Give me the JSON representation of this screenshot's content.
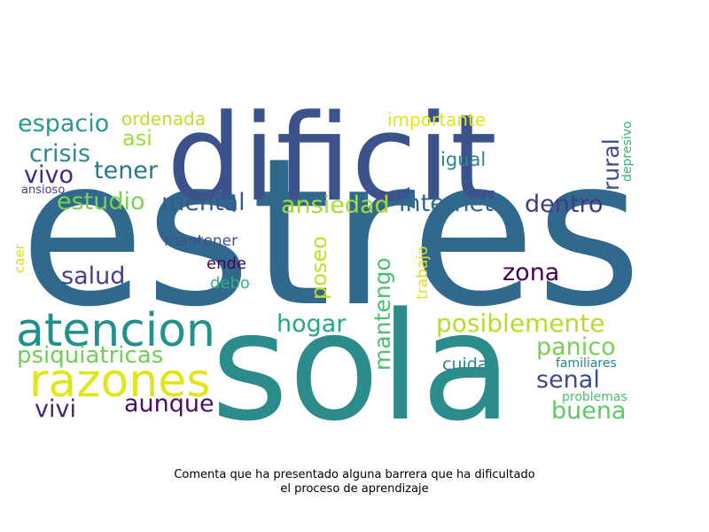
{
  "caption": {
    "line1": "Comenta que ha presentado alguna barrera que ha dificultado",
    "line2": "el proceso de aprendizaje"
  },
  "words": [
    {
      "text": "estres",
      "color": "#31688e",
      "rotated": false
    },
    {
      "text": "dificit",
      "color": "#3b528b",
      "rotated": false
    },
    {
      "text": "sola",
      "color": "#2c8b8b",
      "rotated": false
    },
    {
      "text": "atencion",
      "color": "#21918c",
      "rotated": false
    },
    {
      "text": "razones",
      "color": "#e1e61a",
      "rotated": false
    },
    {
      "text": "posiblemente",
      "color": "#b5de2b",
      "rotated": false
    },
    {
      "text": "psiquiatricas",
      "color": "#6ece58",
      "rotated": false
    },
    {
      "text": "espacio",
      "color": "#2a988a",
      "rotated": false
    },
    {
      "text": "crisis",
      "color": "#2e8a8c",
      "rotated": false
    },
    {
      "text": "vivo",
      "color": "#482878",
      "rotated": false
    },
    {
      "text": "tener",
      "color": "#2a788e",
      "rotated": false
    },
    {
      "text": "asi",
      "color": "#9fda3a",
      "rotated": false
    },
    {
      "text": "ordenada",
      "color": "#bddf26",
      "rotated": false
    },
    {
      "text": "importante",
      "color": "#e5e419",
      "rotated": false
    },
    {
      "text": "igual",
      "color": "#2c838e",
      "rotated": false
    },
    {
      "text": "rural",
      "color": "#3e4989",
      "rotated": true
    },
    {
      "text": "depresivo",
      "color": "#35b779",
      "rotated": true
    },
    {
      "text": "ansioso",
      "color": "#433e85",
      "rotated": false
    },
    {
      "text": "estudio",
      "color": "#7ad151",
      "rotated": false
    },
    {
      "text": "mental",
      "color": "#38598c",
      "rotated": false
    },
    {
      "text": "ansiedad",
      "color": "#a5db36",
      "rotated": false
    },
    {
      "text": "internet",
      "color": "#31688e",
      "rotated": false
    },
    {
      "text": "dentro",
      "color": "#443983",
      "rotated": false
    },
    {
      "text": "mantener",
      "color": "#3b528b",
      "rotated": false
    },
    {
      "text": "caer",
      "color": "#d8e219",
      "rotated": true
    },
    {
      "text": "salud",
      "color": "#404387",
      "rotated": false
    },
    {
      "text": "poseo",
      "color": "#c0df25",
      "rotated": true
    },
    {
      "text": "ende",
      "color": "#46075a",
      "rotated": false
    },
    {
      "text": "debo",
      "color": "#2fb47c",
      "rotated": false
    },
    {
      "text": "mantengo",
      "color": "#4ac16d",
      "rotated": true
    },
    {
      "text": "trabajo",
      "color": "#dde318",
      "rotated": true
    },
    {
      "text": "zona",
      "color": "#440154",
      "rotated": false
    },
    {
      "text": "hogar",
      "color": "#22a884",
      "rotated": false
    },
    {
      "text": "panico",
      "color": "#75d054",
      "rotated": false
    },
    {
      "text": "senal",
      "color": "#3e4a89",
      "rotated": false
    },
    {
      "text": "familiares",
      "color": "#26828e",
      "rotated": false
    },
    {
      "text": "cuidar",
      "color": "#23898e",
      "rotated": false
    },
    {
      "text": "problemas",
      "color": "#4ac16d",
      "rotated": false
    },
    {
      "text": "buena",
      "color": "#5ec962",
      "rotated": false
    },
    {
      "text": "vivi",
      "color": "#482677",
      "rotated": false
    },
    {
      "text": "aunque",
      "color": "#471164",
      "rotated": false
    }
  ]
}
